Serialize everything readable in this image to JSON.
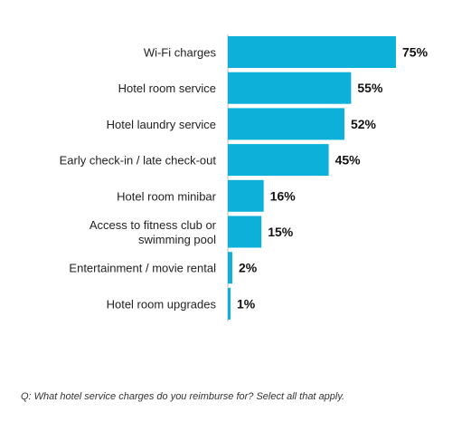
{
  "chart_data": {
    "type": "bar",
    "orientation": "horizontal",
    "categories": [
      [
        "Wi-Fi charges"
      ],
      [
        "Hotel room service"
      ],
      [
        "Hotel laundry service"
      ],
      [
        "Early check-in / late check-out"
      ],
      [
        "Hotel room minibar"
      ],
      [
        "Access to fitness club or",
        "swimming pool"
      ],
      [
        "Entertainment / movie rental"
      ],
      [
        "Hotel room upgrades"
      ]
    ],
    "values": [
      75,
      55,
      52,
      45,
      16,
      15,
      2,
      1
    ],
    "value_labels": [
      "75%",
      "55%",
      "52%",
      "45%",
      "16%",
      "15%",
      "2%",
      "1%"
    ],
    "unit": "%",
    "xlim": [
      0,
      75
    ],
    "bar_color": "#0cb0d8",
    "axis_color": "#bdbdbd",
    "grid": false,
    "legend": "none"
  },
  "footnote": "Q: What hotel service charges do you reimburse for? Select all that apply."
}
